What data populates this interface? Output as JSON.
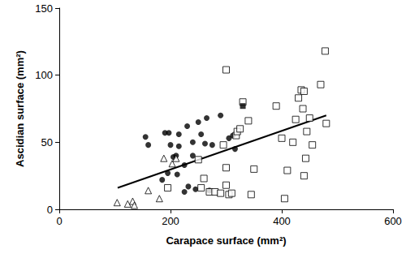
{
  "chart_data": {
    "type": "scatter",
    "x_label": "Carapace surface (mm²)",
    "y_label": "Ascidian surface (mm²)",
    "xlim": [
      0,
      600
    ],
    "xticks": [
      0,
      200,
      400,
      600
    ],
    "ylim": [
      0,
      150
    ],
    "yticks": [
      0,
      50,
      100,
      150
    ],
    "grid": false,
    "series": [
      {
        "type": "scatter",
        "color": "#000000",
        "marker": "circle",
        "x": [
          155,
          160,
          185,
          190,
          195,
          197,
          200,
          205,
          210,
          212,
          215,
          215,
          225,
          225,
          230,
          232,
          240,
          240,
          245,
          250,
          255,
          262,
          265,
          270,
          275,
          290,
          305,
          312,
          316
        ],
        "values": [
          54,
          48,
          22,
          57,
          27,
          57,
          48,
          39,
          40,
          26,
          56,
          47,
          13,
          33,
          62,
          17,
          50,
          40,
          15,
          65,
          56,
          49,
          68,
          14,
          48,
          70,
          53,
          55,
          45
        ]
      },
      {
        "type": "scatter",
        "color": "#000000",
        "marker": "open_square",
        "x": [
          195,
          250,
          255,
          260,
          270,
          280,
          290,
          295,
          300,
          300,
          300,
          305,
          310,
          318,
          320,
          325,
          330,
          340,
          345,
          350,
          390,
          400,
          405,
          410,
          420,
          425,
          430,
          435,
          438,
          440,
          440,
          443,
          445,
          450,
          455,
          470,
          478,
          480
        ],
        "values": [
          16,
          37,
          16,
          23,
          13,
          13,
          12,
          48,
          104,
          31,
          18,
          11,
          12,
          55,
          58,
          60,
          80,
          66,
          11,
          30,
          77,
          53,
          8,
          29,
          50,
          67,
          83,
          89,
          75,
          25,
          88,
          38,
          58,
          68,
          48,
          93,
          118,
          64
        ]
      },
      {
        "type": "scatter",
        "color": "#000000",
        "marker": "square",
        "x": [
          330
        ],
        "values": [
          77
        ]
      },
      {
        "type": "scatter",
        "color": "#000000",
        "marker": "open_triangle",
        "x": [
          104,
          123,
          132,
          135,
          160,
          180,
          188,
          203,
          210
        ],
        "values": [
          5,
          4,
          6,
          3,
          14,
          8,
          38,
          34,
          38
        ]
      },
      {
        "type": "line",
        "color": "#000000",
        "line_style": "solid",
        "x": [
          105,
          480
        ],
        "values": [
          16,
          70
        ]
      }
    ]
  }
}
